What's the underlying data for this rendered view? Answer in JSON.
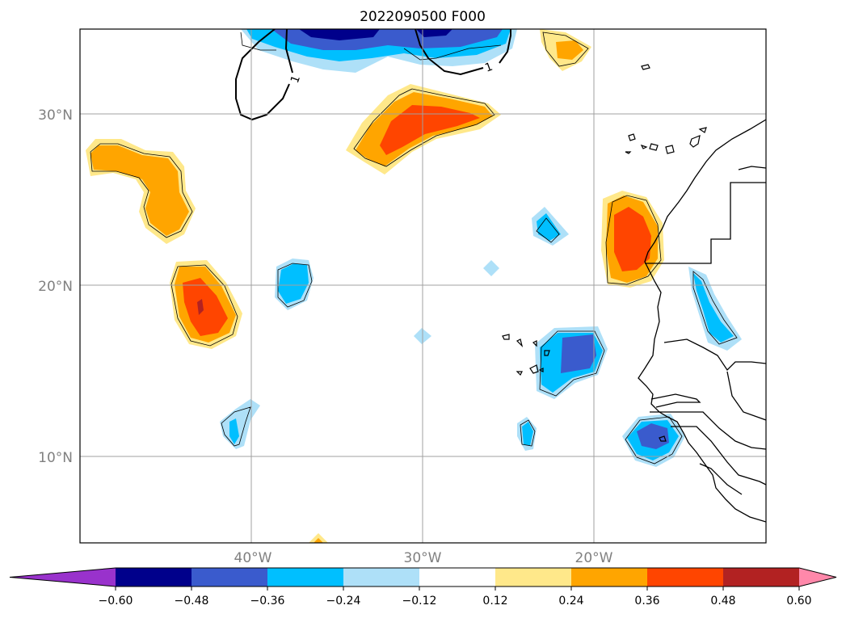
{
  "title": "2022090500 F000",
  "map": {
    "lat_labels": [
      "30°N",
      "20°N",
      "10°N"
    ],
    "lon_labels": [
      "40°W",
      "30°W",
      "20°W"
    ],
    "contour_labels": [
      "1",
      "1"
    ],
    "gridline_color": "#a0a0a0",
    "coastline_color": "#000000"
  },
  "colorbar": {
    "ticks": [
      "−0.60",
      "−0.48",
      "−0.36",
      "−0.24",
      "−0.12",
      "0.12",
      "0.24",
      "0.36",
      "0.48",
      "0.60"
    ],
    "colors": {
      "under": "#9932cc",
      "bins": [
        "#00008b",
        "#3a5bcd",
        "#00bfff",
        "#aee0f8",
        "#ffffff",
        "#ffe88a",
        "#ffa500",
        "#ff4500",
        "#b22222"
      ],
      "over": "#ff88aa"
    }
  }
}
